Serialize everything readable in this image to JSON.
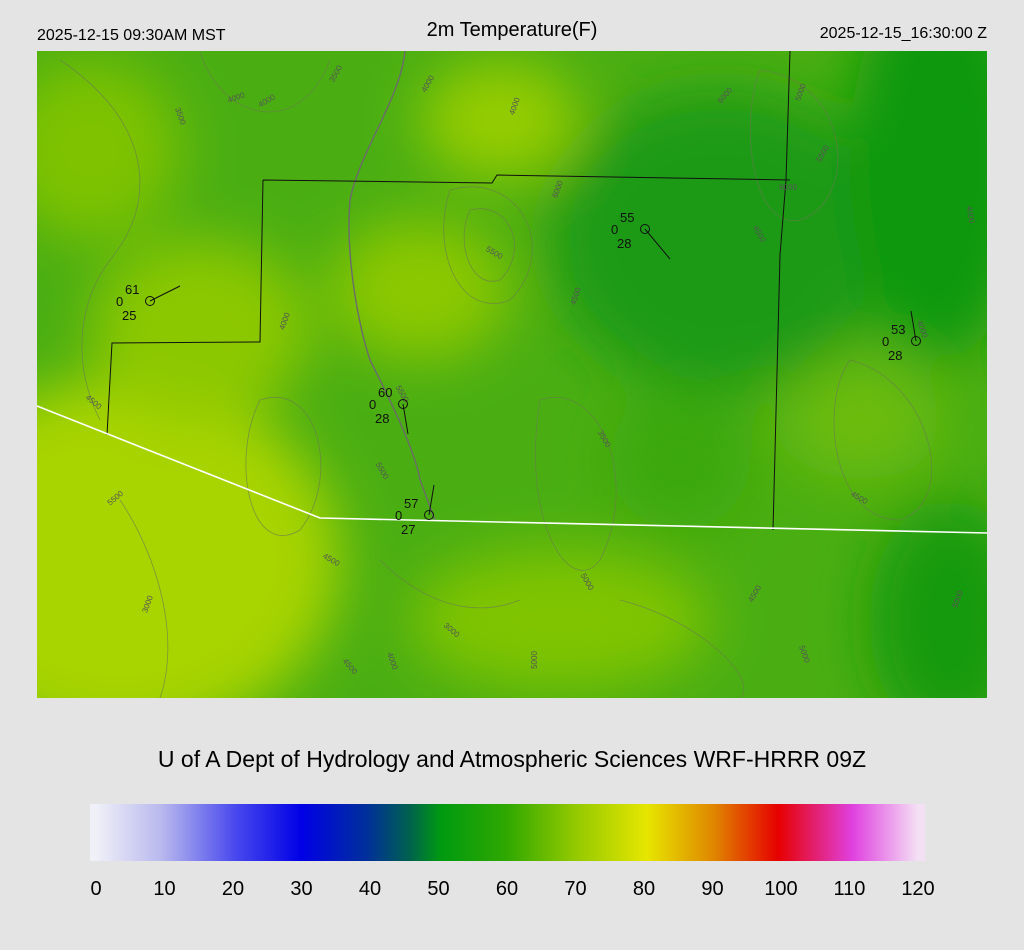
{
  "header": {
    "valid_local": "2025-12-15 09:30AM MST",
    "title": "2m Temperature(F)",
    "valid_utc": "2025-12-15_16:30:00 Z"
  },
  "stations": [
    {
      "temperature": 61,
      "wind": 0,
      "dewpoint": 25
    },
    {
      "temperature": 55,
      "wind": 0,
      "dewpoint": 28
    },
    {
      "temperature": 53,
      "wind": 0,
      "dewpoint": 28
    },
    {
      "temperature": 60,
      "wind": 0,
      "dewpoint": 28
    },
    {
      "temperature": 57,
      "wind": 0,
      "dewpoint": 27
    }
  ],
  "contour_labels": [
    "4000",
    "4000",
    "3500",
    "3500",
    "3000",
    "4000",
    "4000",
    "6000",
    "5000",
    "5500",
    "6000",
    "4000",
    "6000",
    "5500",
    "4500",
    "4500",
    "4000",
    "4500",
    "5500",
    "4000",
    "5500",
    "3500",
    "5500",
    "4500",
    "4500",
    "5000",
    "3000",
    "4500",
    "4000",
    "4500",
    "5000",
    "5000",
    "5000"
  ],
  "credit": "U of A Dept of Hydrology and Atmospheric Sciences WRF-HRRR 09Z",
  "colorbar": {
    "lim": [
      0,
      120
    ],
    "ticks": [
      0,
      10,
      20,
      30,
      40,
      50,
      60,
      70,
      80,
      90,
      100,
      110,
      120
    ]
  }
}
